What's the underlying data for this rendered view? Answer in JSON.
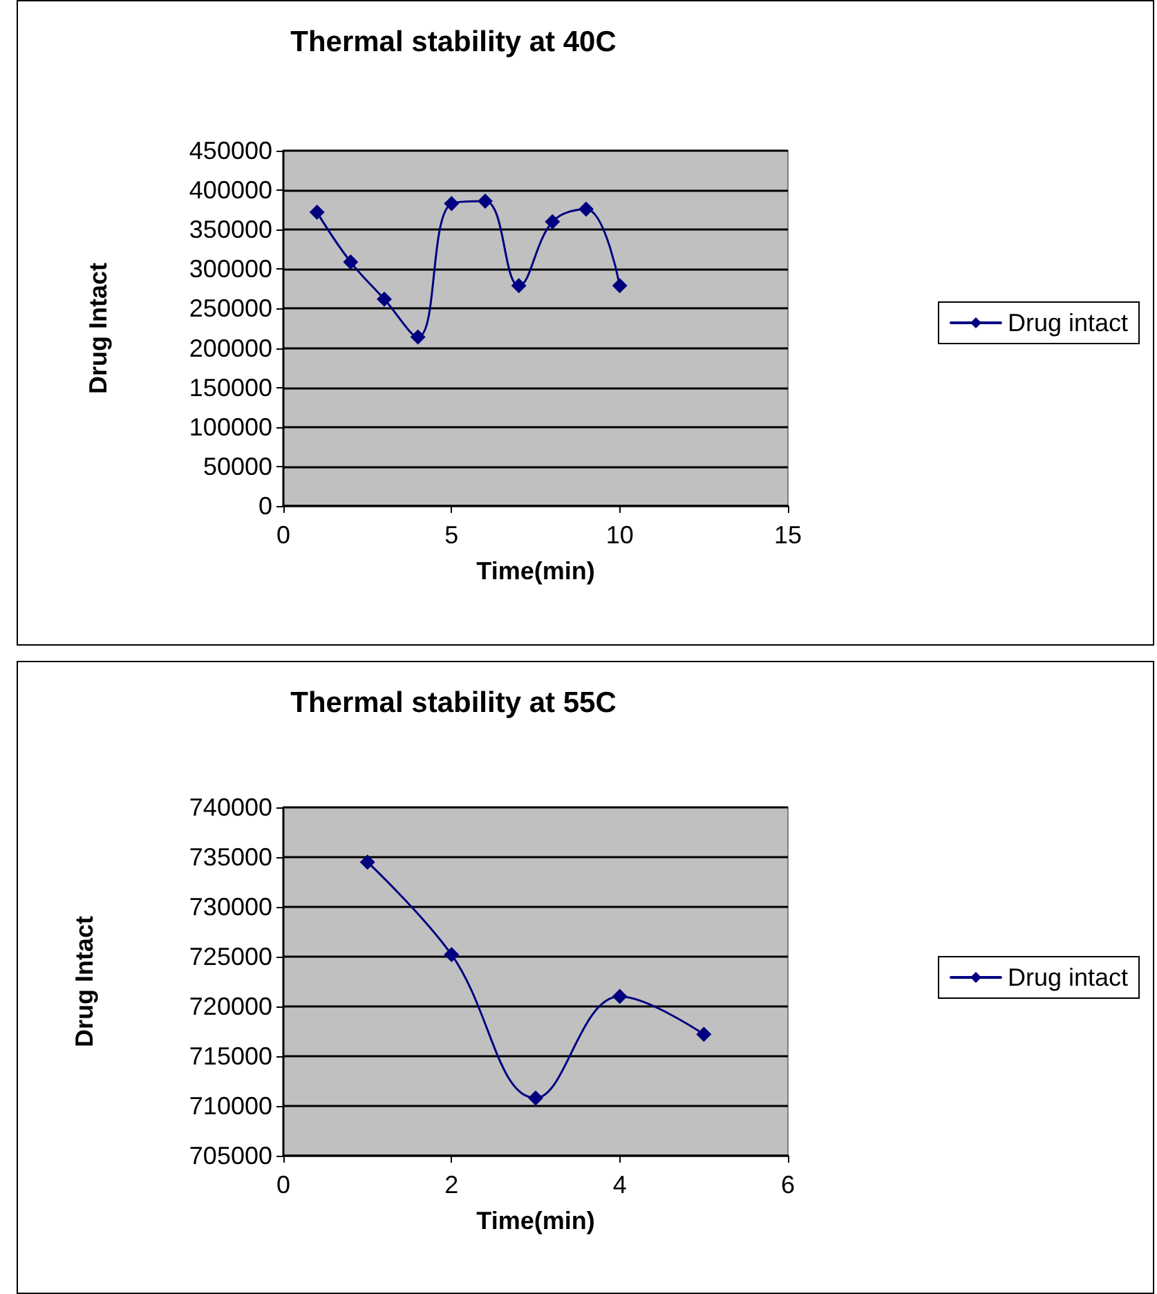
{
  "chart_data": [
    {
      "type": "line",
      "title": "Thermal stability at 40C",
      "xlabel": "Time(min)",
      "ylabel": "Drug Intact",
      "x": [
        1,
        2,
        3,
        4,
        5,
        6,
        7,
        8,
        9,
        10
      ],
      "series": [
        {
          "name": "Drug intact",
          "color": "#000080",
          "values": [
            372000,
            309000,
            262000,
            214000,
            383000,
            386000,
            279000,
            360000,
            376000,
            279000
          ]
        }
      ],
      "xlim": [
        0,
        15
      ],
      "xticks": [
        0,
        5,
        10,
        15
      ],
      "ylim": [
        0,
        450000
      ],
      "yticks": [
        0,
        50000,
        100000,
        150000,
        200000,
        250000,
        300000,
        350000,
        400000,
        450000
      ],
      "grid": "y",
      "legend": "right",
      "marker": "diamond",
      "line_style": "solid"
    },
    {
      "type": "line",
      "title": "Thermal stability at 55C",
      "xlabel": "Time(min)",
      "ylabel": "Drug Intact",
      "x": [
        1,
        2,
        3,
        4,
        5
      ],
      "series": [
        {
          "name": "Drug intact",
          "color": "#000080",
          "values": [
            734500,
            725200,
            710800,
            721000,
            717200
          ]
        }
      ],
      "xlim": [
        0,
        6
      ],
      "xticks": [
        0,
        2,
        4,
        6
      ],
      "ylim": [
        705000,
        740000
      ],
      "yticks": [
        705000,
        710000,
        715000,
        720000,
        725000,
        730000,
        735000,
        740000
      ],
      "grid": "y",
      "legend": "right",
      "marker": "diamond",
      "line_style": "solid"
    }
  ]
}
